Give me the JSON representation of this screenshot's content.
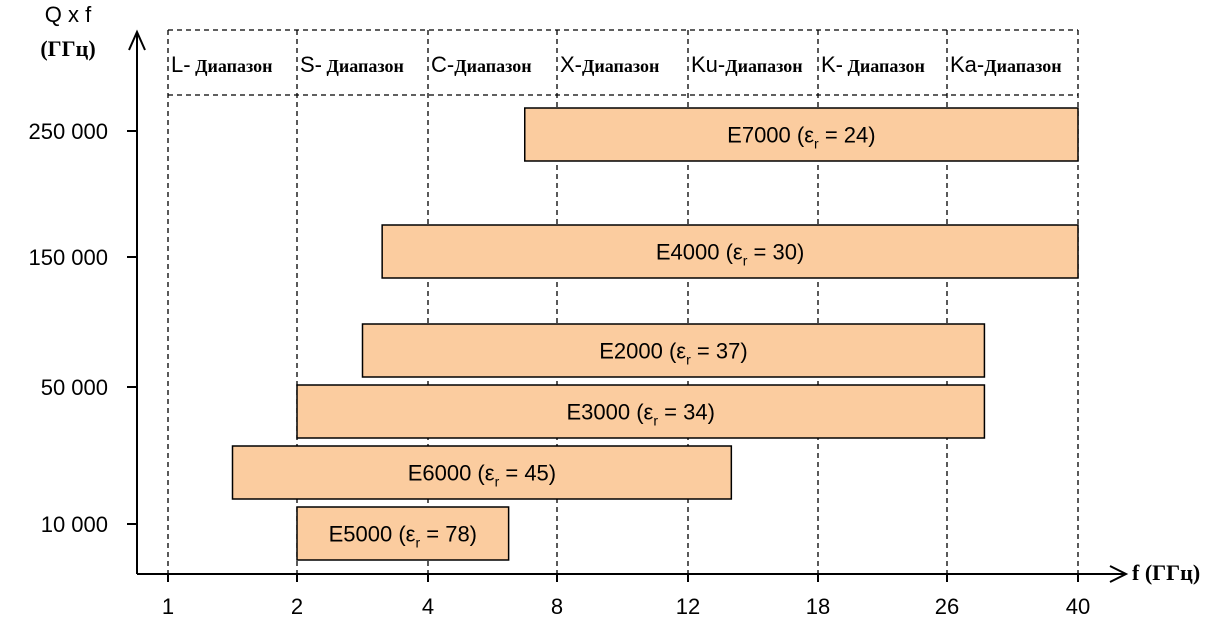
{
  "chart_data": {
    "type": "bar",
    "orientation": "horizontal-range",
    "ylabel_line1": "Q x f",
    "ylabel_line2": "(ГГц)",
    "xlabel": "f (ГГц)",
    "x_ticks": [
      "1",
      "2",
      "4",
      "8",
      "12",
      "18",
      "26",
      "40"
    ],
    "y_ticks": [
      "250 000",
      "150 000",
      "50 000",
      "10 000"
    ],
    "bands": [
      {
        "prefix": "L-",
        "suffix": " Диапазон"
      },
      {
        "prefix": "S-",
        "suffix": " Диапазон"
      },
      {
        "prefix": "C-",
        "suffix": "Диапазон"
      },
      {
        "prefix": "X-",
        "suffix": "Диапазон"
      },
      {
        "prefix": "Ku-",
        "suffix": "Диапазон"
      },
      {
        "prefix": "K-",
        "suffix": " Диапазон"
      },
      {
        "prefix": "Ka-",
        "suffix": "Диапазон"
      }
    ],
    "series": [
      {
        "name": "E7000",
        "er": "24",
        "f_start": 7,
        "f_end": 40,
        "qf": "250 000"
      },
      {
        "name": "E4000",
        "er": "30",
        "f_start": 3.3,
        "f_end": 40,
        "qf": "150 000"
      },
      {
        "name": "E2000",
        "er": "37",
        "f_start": 3.0,
        "f_end": 30,
        "qf": "between 50 000 and 150 000"
      },
      {
        "name": "E3000",
        "er": "34",
        "f_start": 2,
        "f_end": 30,
        "qf": "50 000"
      },
      {
        "name": "E6000",
        "er": "45",
        "f_start": 1.5,
        "f_end": 14,
        "qf": "between 10 000 and 50 000"
      },
      {
        "name": "E5000",
        "er": "78",
        "f_start": 2,
        "f_end": 6.5,
        "qf": "10 000"
      }
    ],
    "bar_color": "#fbcc9f",
    "grid": "dashed vertical lines at frequency ticks",
    "legend": "none"
  }
}
